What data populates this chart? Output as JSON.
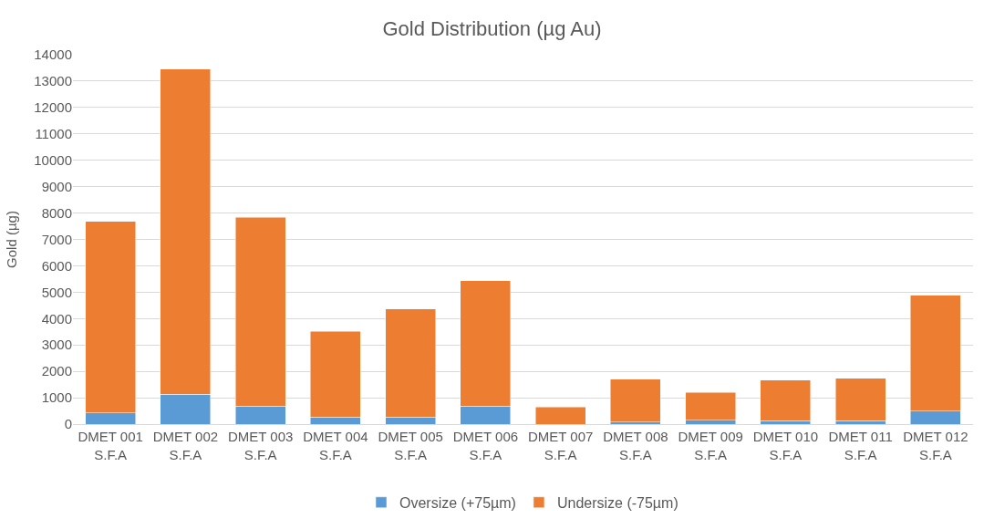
{
  "chart_data": {
    "type": "bar",
    "title": "Gold Distribution (µg Au)",
    "ylabel": "Gold (µg)",
    "stacked": true,
    "categories": [
      "DMET 001\nS.F.A",
      "DMET 002\nS.F.A",
      "DMET 003\nS.F.A",
      "DMET 004\nS.F.A",
      "DMET 005\nS.F.A",
      "DMET 006\nS.F.A",
      "DMET 007\nS.F.A",
      "DMET 008\nS.F.A",
      "DMET 009\nS.F.A",
      "DMET 010\nS.F.A",
      "DMET 011\nS.F.A",
      "DMET 012\nS.F.A"
    ],
    "series": [
      {
        "name": "Oversize (+75µm)",
        "color": "#5b9bd5",
        "values": [
          430,
          1130,
          690,
          260,
          260,
          690,
          null,
          80,
          150,
          130,
          130,
          490
        ]
      },
      {
        "name": "Undersize (-75µm)",
        "color": "#ed7d31",
        "values": [
          7250,
          12330,
          7140,
          3260,
          4100,
          4750,
          650,
          1620,
          1050,
          1530,
          1600,
          4390
        ]
      }
    ],
    "ylim": [
      0,
      14000
    ],
    "yticks": [
      0,
      1000,
      2000,
      3000,
      4000,
      5000,
      6000,
      7000,
      8000,
      9000,
      10000,
      11000,
      12000,
      13000,
      14000
    ],
    "grid": "y",
    "legend": "bottom"
  }
}
